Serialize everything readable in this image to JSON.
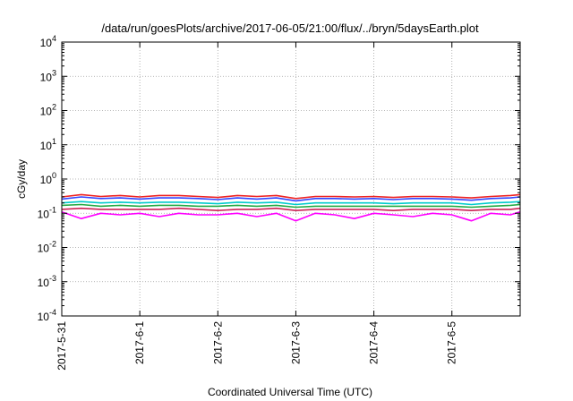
{
  "chart_data": {
    "type": "line",
    "title": "/data/run/goesPlots/archive/2017-06-05/21:00/flux/../bryn/5daysEarth.plot",
    "xlabel": "Coordinated Universal Time (UTC)",
    "ylabel": "cGy/day",
    "y_scale": "log",
    "ylim": [
      0.0001,
      10000
    ],
    "xlim": [
      "2017-05-31T00:00",
      "2017-06-05T21:00"
    ],
    "grid": true,
    "legend": "none",
    "x_ticks": [
      "2017-5-31",
      "2017-6-1",
      "2017-6-2",
      "2017-6-3",
      "2017-6-4",
      "2017-6-5"
    ],
    "y_ticks": [
      {
        "value": 0.0001,
        "base": "10",
        "exp": "-4"
      },
      {
        "value": 0.001,
        "base": "10",
        "exp": "-3"
      },
      {
        "value": 0.01,
        "base": "10",
        "exp": "-2"
      },
      {
        "value": 0.1,
        "base": "10",
        "exp": "-1"
      },
      {
        "value": 1,
        "base": "10",
        "exp": "0"
      },
      {
        "value": 10,
        "base": "10",
        "exp": "1"
      },
      {
        "value": 100,
        "base": "10",
        "exp": "2"
      },
      {
        "value": 1000,
        "base": "10",
        "exp": "3"
      },
      {
        "value": 10000,
        "base": "10",
        "exp": "4"
      }
    ],
    "x": [
      "2017-05-31T00:00",
      "2017-05-31T06:00",
      "2017-05-31T12:00",
      "2017-05-31T18:00",
      "2017-06-01T00:00",
      "2017-06-01T06:00",
      "2017-06-01T12:00",
      "2017-06-01T18:00",
      "2017-06-02T00:00",
      "2017-06-02T06:00",
      "2017-06-02T12:00",
      "2017-06-02T18:00",
      "2017-06-03T00:00",
      "2017-06-03T06:00",
      "2017-06-03T12:00",
      "2017-06-03T18:00",
      "2017-06-04T00:00",
      "2017-06-04T06:00",
      "2017-06-04T12:00",
      "2017-06-04T18:00",
      "2017-06-05T00:00",
      "2017-06-05T06:00",
      "2017-06-05T12:00",
      "2017-06-05T18:00",
      "2017-06-05T21:00"
    ],
    "series": [
      {
        "color": "#ff00ff",
        "values": [
          0.11,
          0.07,
          0.1,
          0.09,
          0.1,
          0.08,
          0.1,
          0.09,
          0.09,
          0.1,
          0.08,
          0.1,
          0.06,
          0.1,
          0.09,
          0.07,
          0.1,
          0.09,
          0.08,
          0.1,
          0.09,
          0.06,
          0.1,
          0.09,
          0.11
        ]
      },
      {
        "color": "#cc2255",
        "values": [
          0.13,
          0.14,
          0.13,
          0.13,
          0.13,
          0.13,
          0.14,
          0.13,
          0.12,
          0.13,
          0.13,
          0.14,
          0.12,
          0.13,
          0.13,
          0.13,
          0.13,
          0.12,
          0.13,
          0.13,
          0.13,
          0.12,
          0.13,
          0.13,
          0.14
        ]
      },
      {
        "color": "#22aa44",
        "values": [
          0.17,
          0.18,
          0.16,
          0.17,
          0.16,
          0.17,
          0.17,
          0.16,
          0.16,
          0.17,
          0.16,
          0.17,
          0.15,
          0.16,
          0.16,
          0.16,
          0.16,
          0.16,
          0.16,
          0.16,
          0.16,
          0.15,
          0.16,
          0.17,
          0.18
        ]
      },
      {
        "color": "#00cccc",
        "values": [
          0.2,
          0.22,
          0.2,
          0.21,
          0.2,
          0.21,
          0.21,
          0.2,
          0.19,
          0.21,
          0.2,
          0.21,
          0.18,
          0.2,
          0.2,
          0.2,
          0.2,
          0.19,
          0.2,
          0.2,
          0.2,
          0.18,
          0.2,
          0.21,
          0.22
        ]
      },
      {
        "color": "#3344ff",
        "values": [
          0.26,
          0.3,
          0.27,
          0.28,
          0.26,
          0.28,
          0.28,
          0.27,
          0.25,
          0.28,
          0.26,
          0.28,
          0.23,
          0.27,
          0.27,
          0.26,
          0.27,
          0.25,
          0.27,
          0.27,
          0.26,
          0.24,
          0.27,
          0.28,
          0.3
        ]
      },
      {
        "color": "#ee2222",
        "values": [
          0.3,
          0.35,
          0.31,
          0.33,
          0.3,
          0.33,
          0.33,
          0.31,
          0.29,
          0.33,
          0.31,
          0.33,
          0.27,
          0.31,
          0.31,
          0.3,
          0.31,
          0.29,
          0.31,
          0.31,
          0.3,
          0.28,
          0.31,
          0.33,
          0.35
        ]
      }
    ]
  }
}
